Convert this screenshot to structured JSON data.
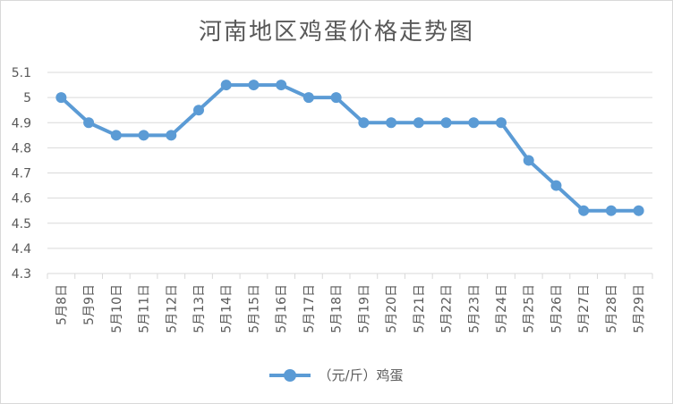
{
  "colors": {
    "series": "#5b9bd5",
    "grid": "#d9d9d9",
    "text": "#595959"
  },
  "chart_data": {
    "type": "line",
    "title": "河南地区鸡蛋价格走势图",
    "xlabel": "",
    "ylabel": "",
    "ylim": [
      4.3,
      5.1
    ],
    "yticks": [
      "5.1",
      "5",
      "4.9",
      "4.8",
      "4.7",
      "4.6",
      "4.5",
      "4.4",
      "4.3"
    ],
    "grid": "horizontal",
    "legend_position": "bottom",
    "categories": [
      "5月8日",
      "5月9日",
      "5月10日",
      "5月11日",
      "5月12日",
      "5月13日",
      "5月14日",
      "5月15日",
      "5月16日",
      "5月17日",
      "5月18日",
      "5月19日",
      "5月20日",
      "5月21日",
      "5月22日",
      "5月23日",
      "5月24日",
      "5月25日",
      "5月26日",
      "5月27日",
      "5月28日",
      "5月29日"
    ],
    "series": [
      {
        "name": "（元/斤）鸡蛋",
        "values": [
          5.0,
          4.9,
          4.85,
          4.85,
          4.85,
          4.95,
          5.05,
          5.05,
          5.05,
          5.0,
          5.0,
          4.9,
          4.9,
          4.9,
          4.9,
          4.9,
          4.9,
          4.75,
          4.65,
          4.55,
          4.55,
          4.55
        ]
      }
    ]
  }
}
